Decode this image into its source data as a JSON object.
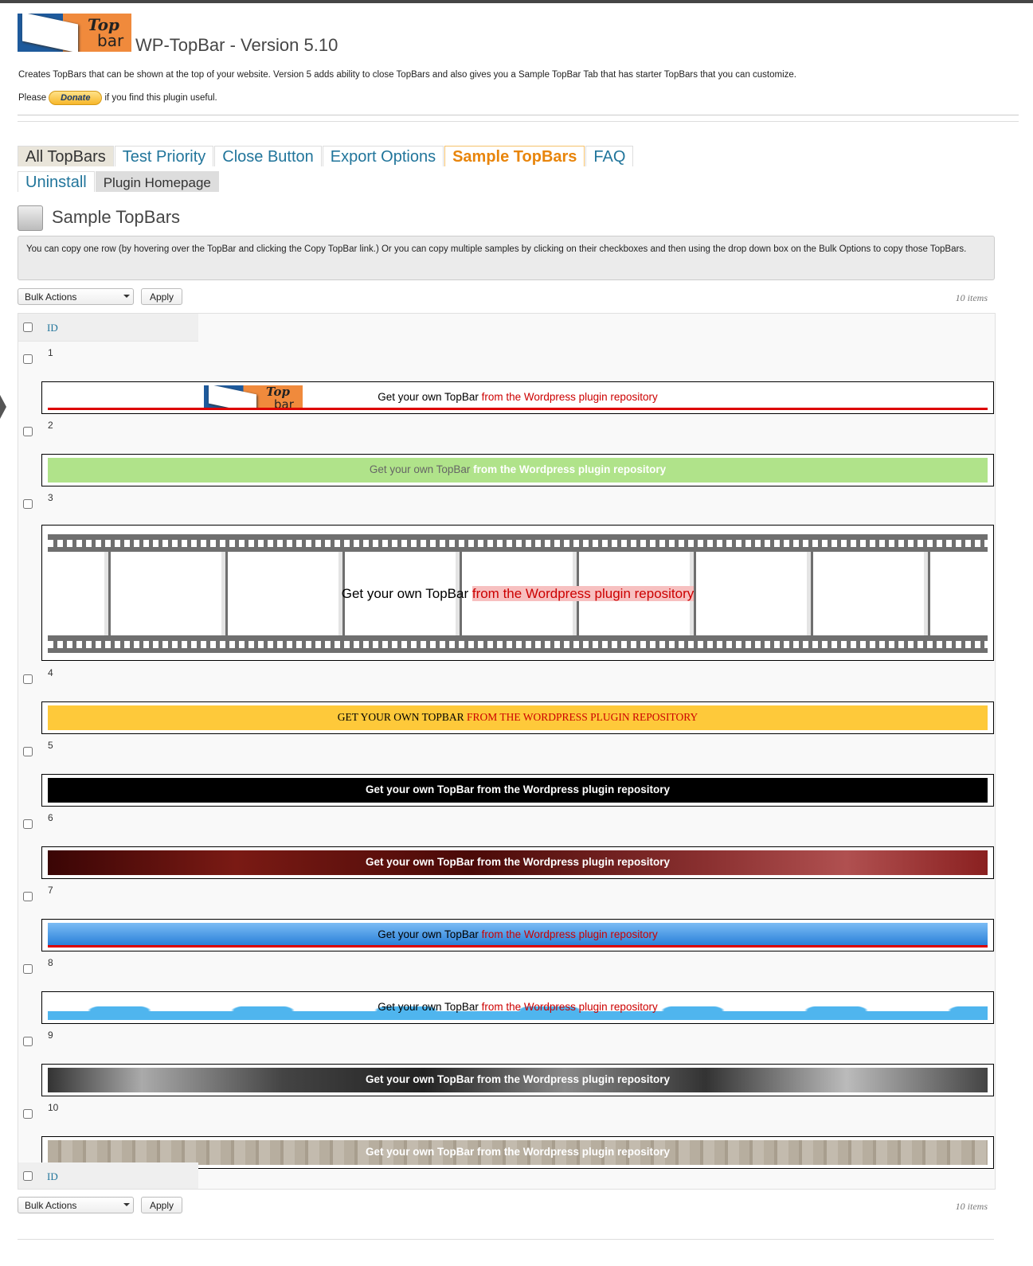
{
  "header": {
    "logo": {
      "top": "Top",
      "bottom": "bar"
    },
    "title": "WP-TopBar - Version 5.10",
    "description": "Creates TopBars that can be shown at the top of your website. Version 5 adds ability to close TopBars and also gives you a Sample TopBar Tab that has starter TopBars that you can customize.",
    "please": "Please",
    "donate": "Donate",
    "useful": "if you find this plugin useful."
  },
  "tabs": [
    "All TopBars",
    "Test Priority",
    "Close Button",
    "Export Options",
    "Sample TopBars",
    "FAQ",
    "Uninstall",
    "Plugin Homepage"
  ],
  "section_title": "Sample TopBars",
  "notice": "You can copy one row (by hovering over the TopBar and clicking the Copy TopBar link.) Or you can copy multiple samples by clicking on their checkboxes and then using the drop down box on the Bulk Options to copy those TopBars.",
  "top_nav": {
    "bulk_actions": "Bulk Actions",
    "apply": "Apply",
    "count": "10 items"
  },
  "table": {
    "header": "ID",
    "footer": "ID",
    "rows": [
      {
        "id": 1,
        "logo": {
          "top": "Top",
          "bottom": "bar"
        },
        "text": "Get your own TopBar",
        "link": "from the Wordpress plugin repository"
      },
      {
        "id": 2,
        "text": "Get your own TopBar",
        "link": "from the Wordpress plugin repository"
      },
      {
        "id": 3,
        "text": "Get your own TopBar",
        "link": "from the Wordpress plugin repository"
      },
      {
        "id": 4,
        "text": "GET YOUR OWN TOPBAR",
        "link": "FROM THE WORDPRESS PLUGIN REPOSITORY"
      },
      {
        "id": 5,
        "text": "Get your own TopBar",
        "link": "from the Wordpress plugin repository"
      },
      {
        "id": 6,
        "text": "Get your own TopBar",
        "link": "from the Wordpress plugin repository"
      },
      {
        "id": 7,
        "text": "Get your own TopBar",
        "link": "from the Wordpress plugin repository"
      },
      {
        "id": 8,
        "text": "Get your own TopBar",
        "link": "from the Wordpress plugin repository"
      },
      {
        "id": 9,
        "text": "Get your own TopBar",
        "link": "from the Wordpress plugin repository"
      },
      {
        "id": 10,
        "text": "Get your own TopBar",
        "link": "from the Wordpress plugin repository"
      }
    ]
  },
  "bottom_nav": {
    "bulk_actions": "Bulk Actions",
    "apply": "Apply",
    "count": "10 items"
  }
}
